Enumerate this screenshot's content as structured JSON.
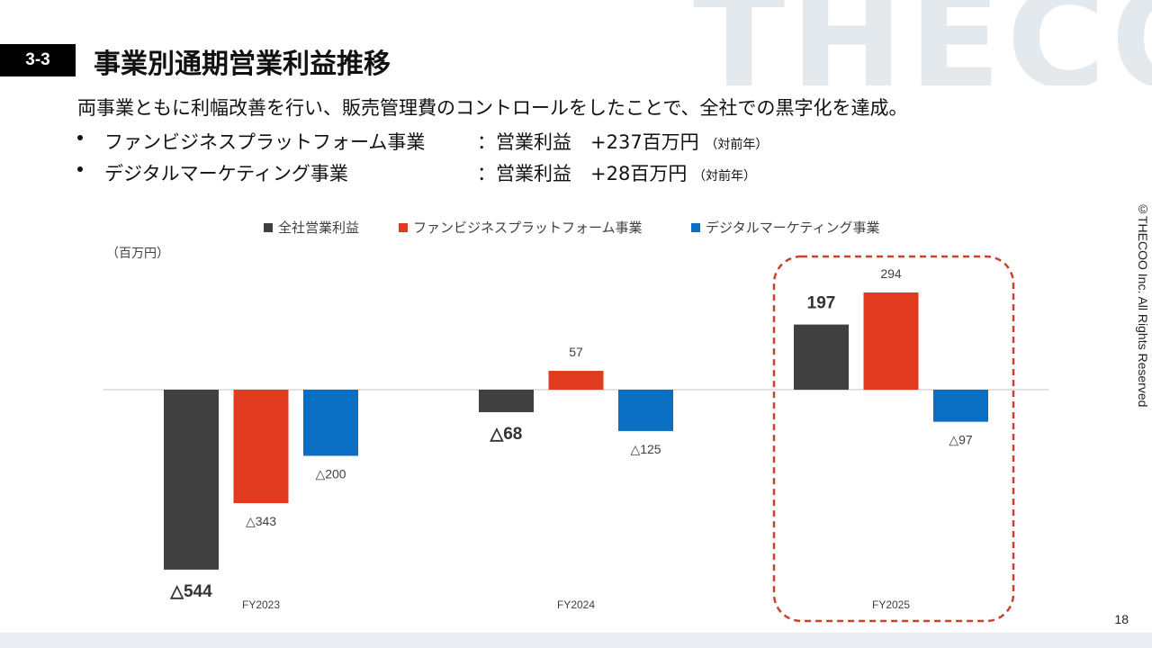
{
  "watermark": {
    "text": "THECOO"
  },
  "header": {
    "section_number": "3-3",
    "title": "事業別通期営業利益推移"
  },
  "summary": "両事業ともに利幅改善を行い、販売管理費のコントロールをしたことで、全社での黒字化を達成。",
  "bullets": [
    {
      "label": "ファンビジネスプラットフォーム事業",
      "separator": "：",
      "metric": "営業利益　+237百万円",
      "note": "（対前年）"
    },
    {
      "label": "デジタルマーケティング事業",
      "separator": "：",
      "metric": "営業利益　+28百万円",
      "note": "（対前年）"
    }
  ],
  "copyright": "©THECOO Inc. All Rights Reserved",
  "page_number": "18",
  "colors": {
    "total": "#404040",
    "fan": "#e03a1f",
    "digital": "#0a6fc2",
    "highlight": "#c8432d",
    "baseline": "#d9d9d9"
  },
  "chart_data": {
    "type": "bar",
    "unit_label": "（百万円）",
    "categories": [
      "FY2023",
      "FY2024",
      "FY2025"
    ],
    "series": [
      {
        "name": "全社営業利益",
        "color": "#404040",
        "values": [
          -544,
          -68,
          197
        ],
        "labels": [
          "△544",
          "△68",
          "197"
        ],
        "bold_labels": true
      },
      {
        "name": "ファンビジネスプラットフォーム事業",
        "color": "#e03a1f",
        "values": [
          -343,
          57,
          294
        ],
        "labels": [
          "△343",
          "57",
          "294"
        ],
        "bold_labels": false
      },
      {
        "name": "デジタルマーケティング事業",
        "color": "#0a6fc2",
        "values": [
          -200,
          -125,
          -97
        ],
        "labels": [
          "△200",
          "△125",
          "△97"
        ],
        "bold_labels": false
      }
    ],
    "highlight_category": "FY2025",
    "legend_position": "top",
    "grid": false
  }
}
